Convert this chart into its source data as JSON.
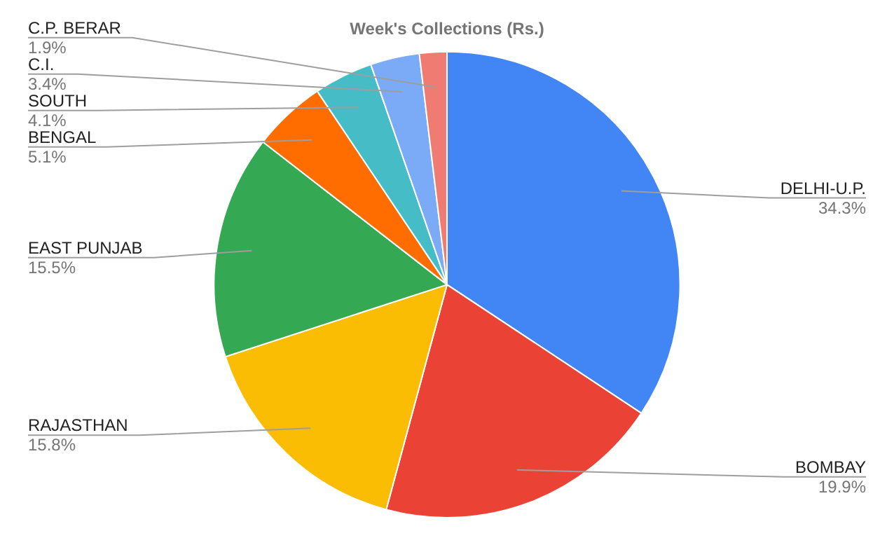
{
  "chart_data": {
    "type": "pie",
    "title": "Week's Collections (Rs.)",
    "categories": [
      "DELHI-U.P.",
      "BOMBAY",
      "RAJASTHAN",
      "EAST PUNJAB",
      "BENGAL",
      "SOUTH",
      "C.I.",
      "C.P. BERAR"
    ],
    "values": [
      34.3,
      19.9,
      15.8,
      15.5,
      5.1,
      4.1,
      3.4,
      1.9
    ],
    "value_labels": [
      "34.3%",
      "19.9%",
      "15.8%",
      "15.5%",
      "5.1%",
      "4.1%",
      "3.4%",
      "1.9%"
    ],
    "colors": [
      "#4285f4",
      "#ea4335",
      "#fbbc04",
      "#34a853",
      "#ff6d01",
      "#46bdc6",
      "#7baaf7",
      "#f07b72"
    ],
    "legend": false
  }
}
